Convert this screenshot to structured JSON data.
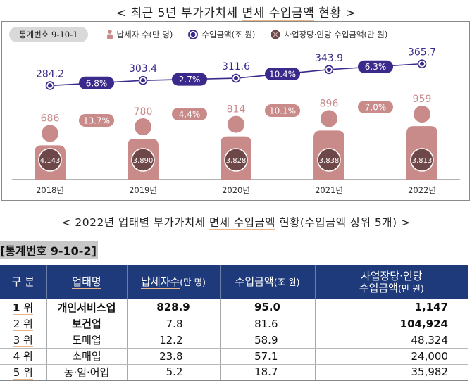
{
  "title1": {
    "prefix": "< 최근 5년 부가가치세 ",
    "underlined": "면세 수입금액",
    "suffix": " 현황 >"
  },
  "legend": {
    "stat_number": "통계번호 9-10-1",
    "taxpayers": "납세자 수(만 명)",
    "revenue": "수입금액(조 원)",
    "per_capita": "사업장당·인당 수입금액(만 원)"
  },
  "colors": {
    "revenue_line": "#3b2a8c",
    "taxpayer_figure": "#c98a8a",
    "per_capita_circle": "#6e4748",
    "stat_header": "#1f3a7a"
  },
  "chart_data": {
    "type": "line+pictogram",
    "title": "최근 5년 부가가치세 면세 수입금액 현황",
    "categories": [
      "2018년",
      "2019년",
      "2020년",
      "2021년",
      "2022년"
    ],
    "series": [
      {
        "name": "수입금액(조 원)",
        "type": "line",
        "values": [
          284.2,
          303.4,
          311.6,
          343.9,
          365.7
        ],
        "labels": [
          "284.2",
          "303.4",
          "311.6",
          "343.9",
          "365.7"
        ],
        "growth_labels": [
          "6.8%",
          "2.7%",
          "10.4%",
          "6.3%"
        ]
      },
      {
        "name": "납세자 수(만 명)",
        "type": "pictogram",
        "values": [
          686,
          780,
          814,
          896,
          959
        ],
        "labels": [
          "686",
          "780",
          "814",
          "896",
          "959"
        ],
        "growth_labels": [
          "13.7%",
          "4.4%",
          "10.1%",
          "7.0%"
        ]
      },
      {
        "name": "사업장당·인당 수입금액(만 원)",
        "type": "badge",
        "values": [
          4143,
          3890,
          3828,
          3838,
          3813
        ],
        "labels": [
          "4,143",
          "3,890",
          "3,828",
          "3,838",
          "3,813"
        ]
      }
    ],
    "legend": [
      "납세자 수(만 명)",
      "수입금액(조 원)",
      "사업장당·인당 수입금액(만 원)"
    ]
  },
  "title2": {
    "prefix": "< 2022년 업태별 부가가치세 ",
    "underlined": "면세 수입금액",
    "suffix": " 현황(수입금액 상위 5개) >"
  },
  "table": {
    "stat_number": "[통계번호 9-10-2]",
    "headers": {
      "rank": "구 분",
      "industry": "업태명",
      "taxpayers_main": "납세자수",
      "taxpayers_unit": "(만 명)",
      "revenue_main": "수입금액",
      "revenue_unit": "(조 원)",
      "per_capita_line1": "사업장당·인당",
      "per_capita_main": "수입금액",
      "per_capita_unit": "(만 원)"
    },
    "rows": [
      {
        "rank": "1 위",
        "industry": "개인서비스업",
        "taxpayers": "828.9",
        "revenue": "95.0",
        "per_capita": "1,147"
      },
      {
        "rank": "2 위",
        "industry": "보건업",
        "taxpayers": "7.8",
        "revenue": "81.6",
        "per_capita": "104,924"
      },
      {
        "rank": "3 위",
        "industry": "도매업",
        "taxpayers": "12.2",
        "revenue": "58.9",
        "per_capita": "48,324"
      },
      {
        "rank": "4 위",
        "industry": "소매업",
        "taxpayers": "23.8",
        "revenue": "57.1",
        "per_capita": "24,000"
      },
      {
        "rank": "5 위",
        "industry": "농·임·어업",
        "taxpayers": "5.2",
        "revenue": "18.7",
        "per_capita": "35,982"
      }
    ]
  }
}
